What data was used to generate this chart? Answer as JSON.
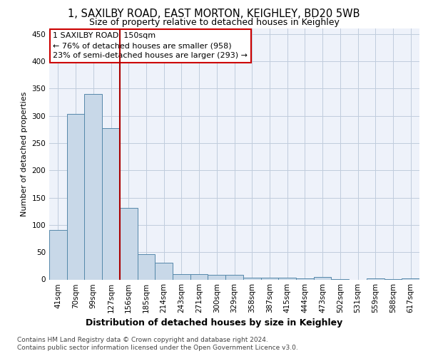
{
  "title_line1": "1, SAXILBY ROAD, EAST MORTON, KEIGHLEY, BD20 5WB",
  "title_line2": "Size of property relative to detached houses in Keighley",
  "xlabel": "Distribution of detached houses by size in Keighley",
  "ylabel": "Number of detached properties",
  "categories": [
    "41sqm",
    "70sqm",
    "99sqm",
    "127sqm",
    "156sqm",
    "185sqm",
    "214sqm",
    "243sqm",
    "271sqm",
    "300sqm",
    "329sqm",
    "358sqm",
    "387sqm",
    "415sqm",
    "444sqm",
    "473sqm",
    "502sqm",
    "531sqm",
    "559sqm",
    "588sqm",
    "617sqm"
  ],
  "values": [
    91,
    303,
    340,
    277,
    131,
    46,
    31,
    10,
    10,
    8,
    8,
    3,
    3,
    3,
    2,
    4,
    1,
    0,
    2,
    1,
    2
  ],
  "bar_color": "#c8d8e8",
  "bar_edge_color": "#5588aa",
  "marker_label": "1 SAXILBY ROAD: 150sqm",
  "annotation_line1": "← 76% of detached houses are smaller (958)",
  "annotation_line2": "23% of semi-detached houses are larger (293) →",
  "annotation_box_color": "#ffffff",
  "annotation_box_edge": "#cc0000",
  "marker_line_color": "#aa0000",
  "ylim": [
    0,
    460
  ],
  "yticks": [
    0,
    50,
    100,
    150,
    200,
    250,
    300,
    350,
    400,
    450
  ],
  "footer_line1": "Contains HM Land Registry data © Crown copyright and database right 2024.",
  "footer_line2": "Contains public sector information licensed under the Open Government Licence v3.0.",
  "background_color": "#eef2fa",
  "grid_color": "#c0ccdd",
  "title1_fontsize": 10.5,
  "title2_fontsize": 9,
  "ylabel_fontsize": 8,
  "xlabel_fontsize": 9,
  "tick_fontsize": 7.5,
  "footer_fontsize": 6.5,
  "annot_fontsize": 8
}
